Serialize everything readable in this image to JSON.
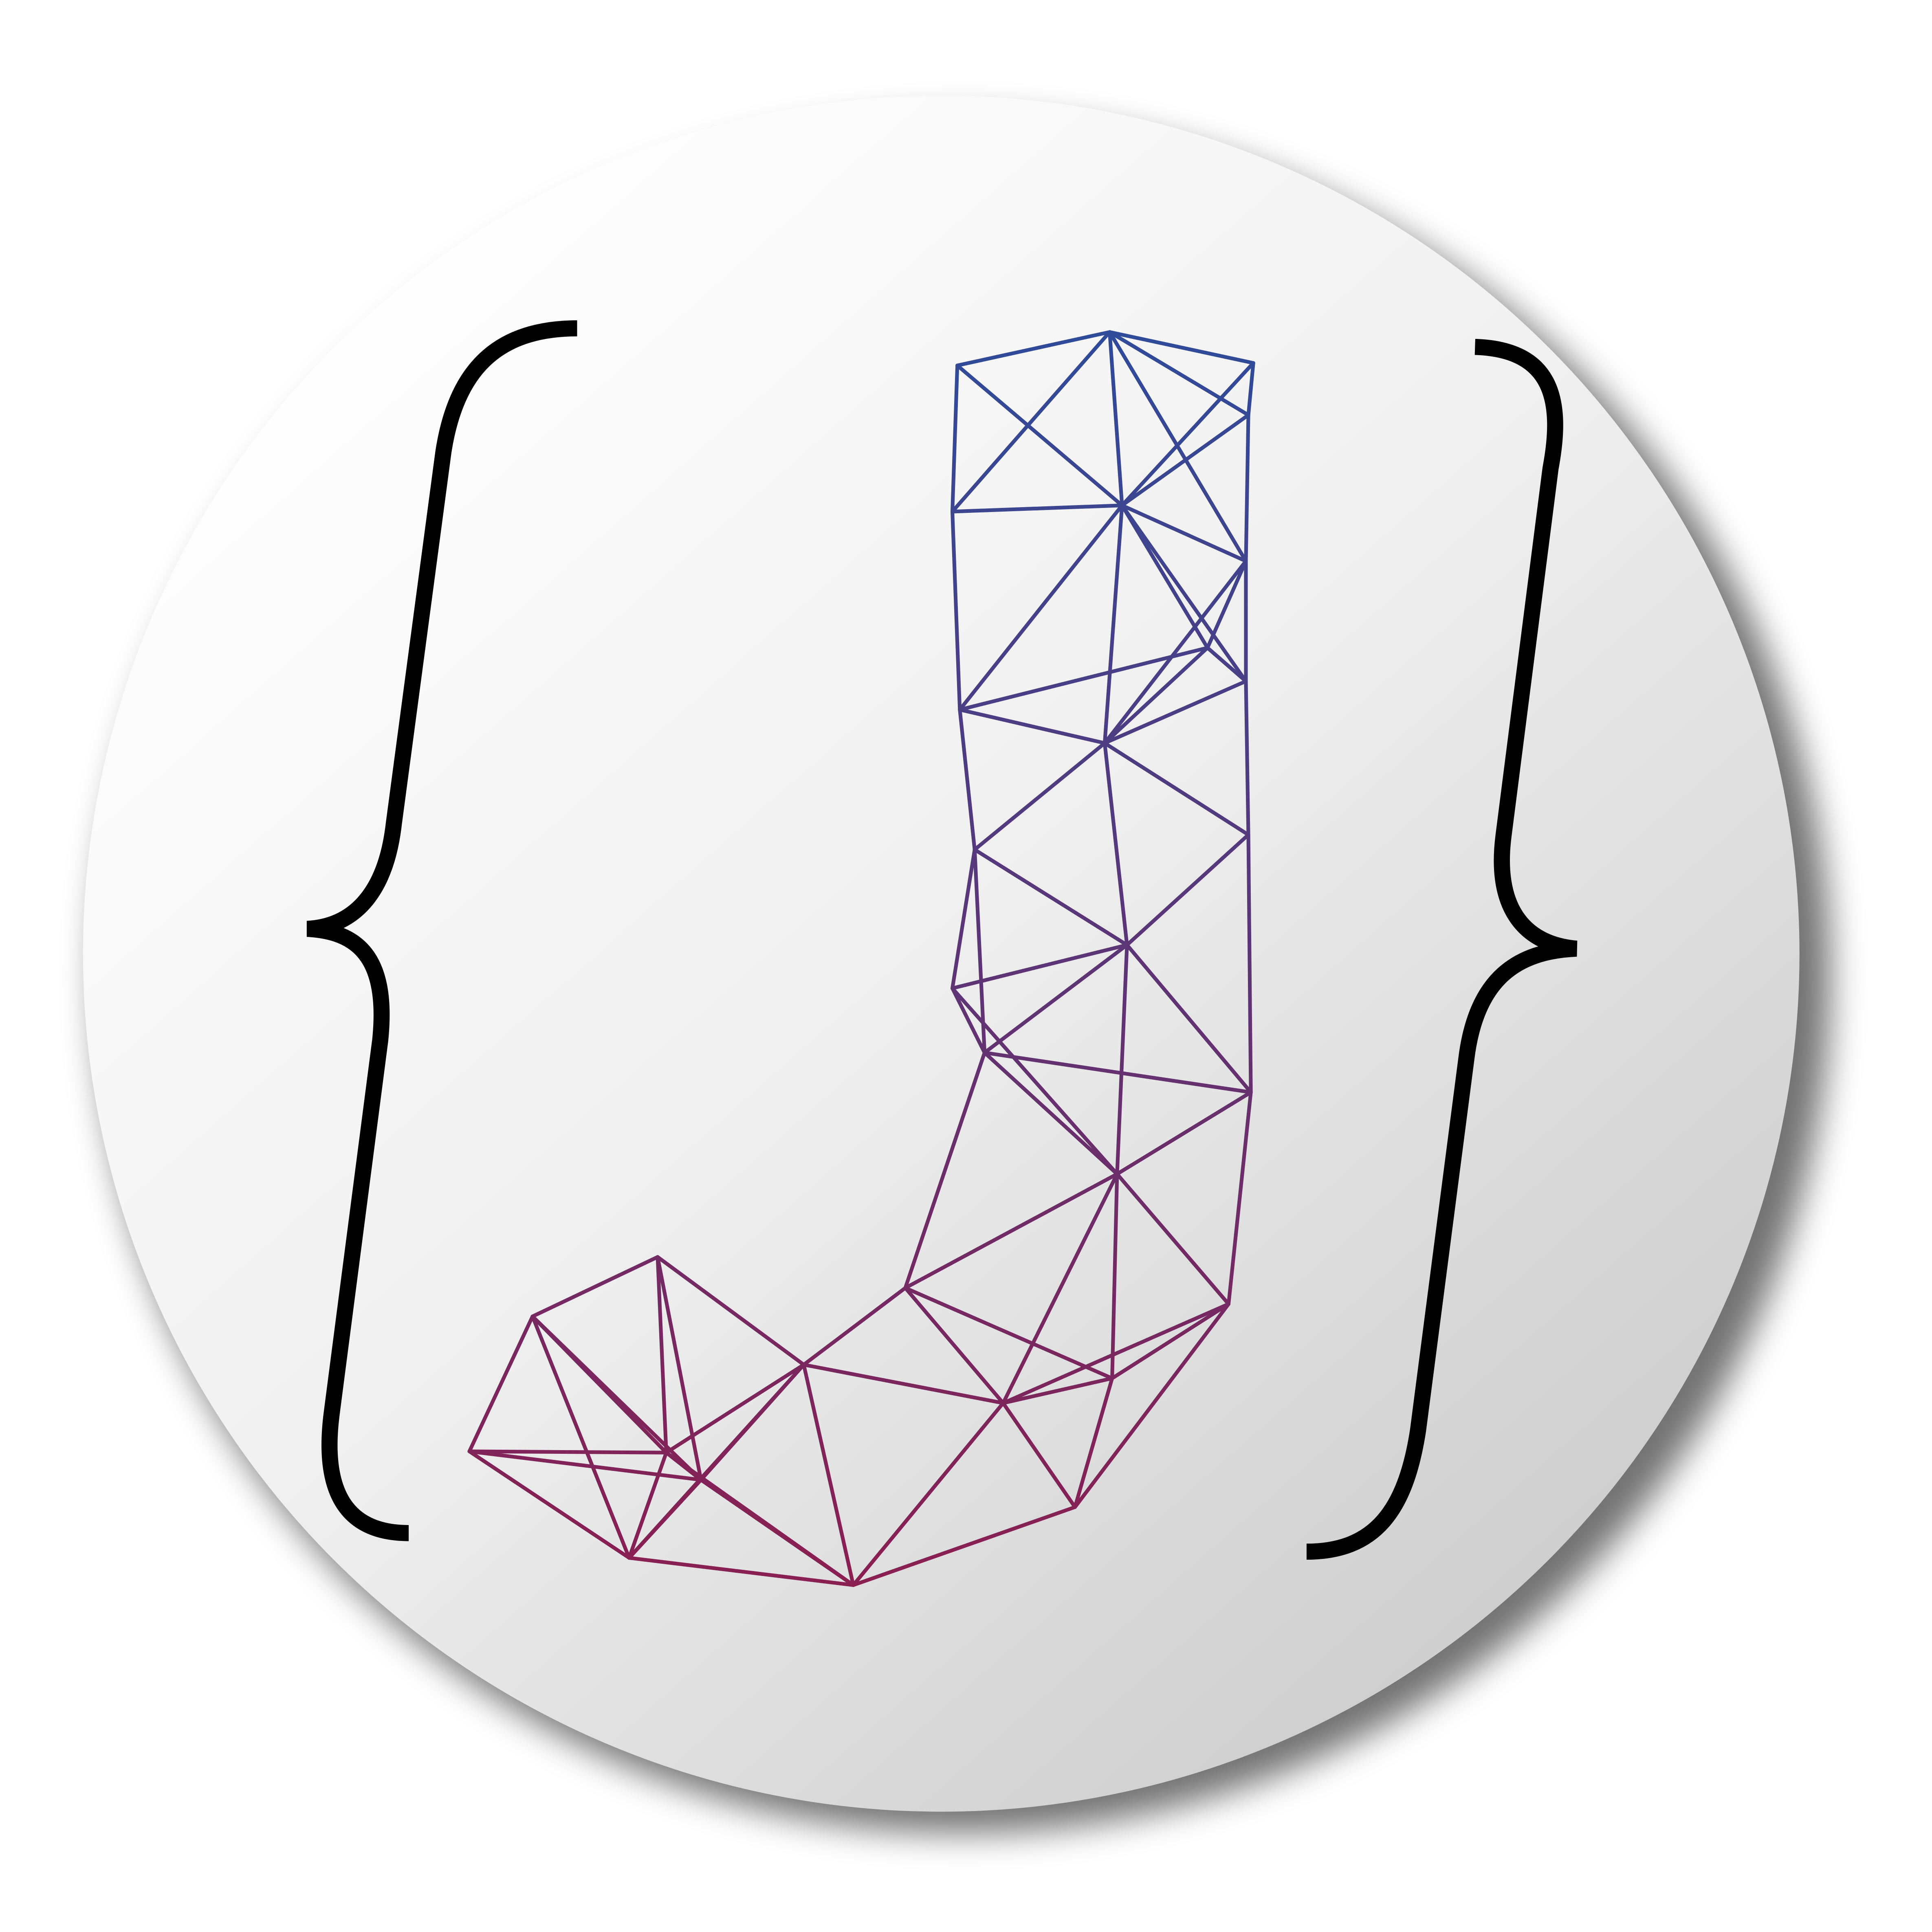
{
  "logo": {
    "description_icon": "wireframe-letter-j-icon",
    "colors": {
      "background": "#ffffff",
      "disc_light": "#ffffff",
      "disc_dark": "#c8c8c8",
      "shadow": "#000000",
      "braces": "#000000",
      "mesh_top": "#2f4b9a",
      "mesh_bottom": "#8a1f52"
    }
  }
}
